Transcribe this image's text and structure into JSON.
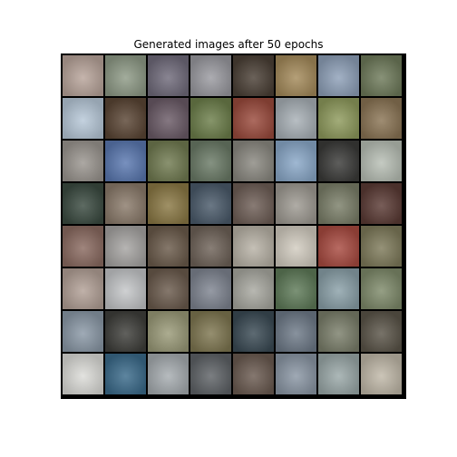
{
  "figure": {
    "title": "Generated images after 50 epochs"
  },
  "grid": {
    "rows": 8,
    "cols": 8,
    "tile_colors": [
      [
        "#b8a49a",
        "#8e9a86",
        "#6f6a7a",
        "#9a9aa0",
        "#4a3f35",
        "#a48a5a",
        "#8ea0b8",
        "#6e7a5a"
      ],
      [
        "#b7c8d8",
        "#5a4534",
        "#6a5a66",
        "#6c7e4a",
        "#9a4a3c",
        "#a8b0b6",
        "#8e9a5c",
        "#8a7454"
      ],
      [
        "#9a958f",
        "#5a78b0",
        "#707a50",
        "#6a7a66",
        "#8a8880",
        "#8aa8c8",
        "#3a3a38",
        "#b8bfb5"
      ],
      [
        "#3a4a40",
        "#8a7a6a",
        "#8a7844",
        "#4a5a6a",
        "#6e5e56",
        "#9e9a92",
        "#7a7e68",
        "#5a3a34"
      ],
      [
        "#8a6a60",
        "#a6a4a2",
        "#6a5a4a",
        "#6e6258",
        "#b8b2a6",
        "#d2ccc0",
        "#a84a40",
        "#7e7a5a"
      ],
      [
        "#b2a096",
        "#c4c6c8",
        "#6a5a4c",
        "#7e8490",
        "#a8a8a0",
        "#5e7a58",
        "#8aa0a8",
        "#7e8a6a"
      ],
      [
        "#8a98a6",
        "#3e3e3a",
        "#9a9a78",
        "#7e7650",
        "#3a4a54",
        "#6e7a88",
        "#7a7e6a",
        "#5a5448"
      ],
      [
        "#dcdcd8",
        "#3a6a8a",
        "#a6acb0",
        "#5e6266",
        "#6a5a50",
        "#8a96a4",
        "#9aa8a8",
        "#c0b8a8"
      ]
    ]
  }
}
